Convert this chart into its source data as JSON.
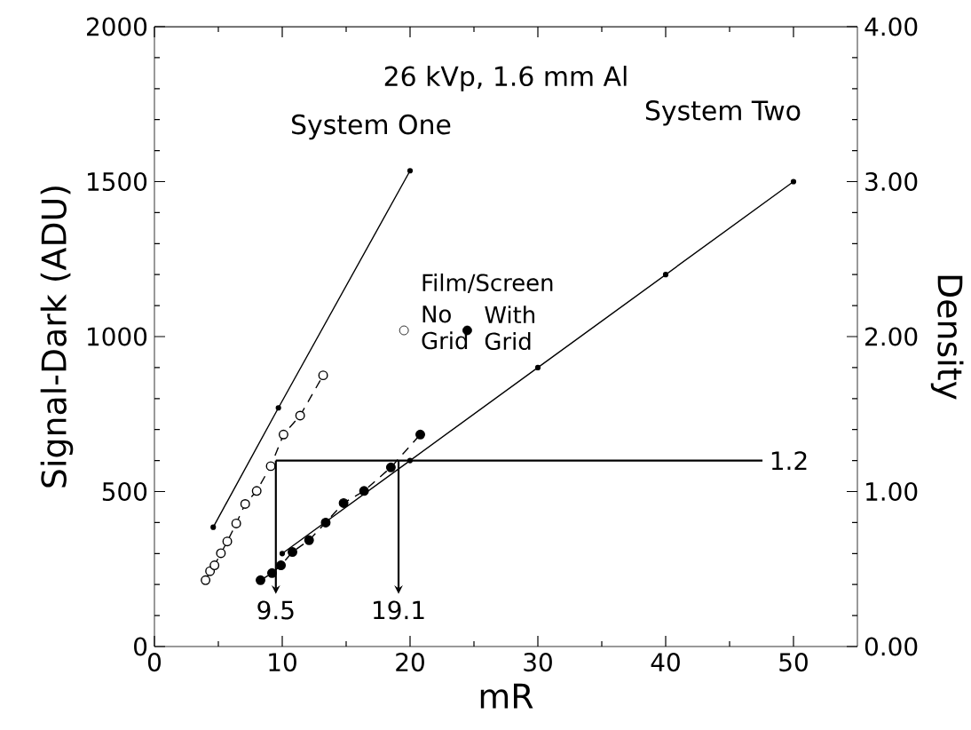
{
  "chart_data": {
    "type": "line",
    "title": "26 kVp, 1.6 mm Al",
    "xlabel": "mR",
    "ylabel": "Signal-Dark (ADU)",
    "y2label": "Density",
    "annotations": [
      "Film/Screen"
    ],
    "xlim": [
      0,
      55
    ],
    "xticks": [
      0,
      10,
      20,
      30,
      40,
      50
    ],
    "ylim": [
      0,
      2000
    ],
    "yticks": [
      0,
      500,
      1000,
      1500,
      2000
    ],
    "y2lim": [
      0,
      4
    ],
    "y2ticks": [
      {
        "value": 0,
        "label": "0.00"
      },
      {
        "value": 1,
        "label": "1.00"
      },
      {
        "value": 2,
        "label": "2.00"
      },
      {
        "value": 3,
        "label": "3.00"
      },
      {
        "value": 4,
        "label": "4.00"
      }
    ],
    "grid": false,
    "legend": "top",
    "ref_lines": [
      {
        "axis": "y2",
        "value": 1.2,
        "label": "1.2"
      },
      {
        "axis": "x",
        "value": 9.5,
        "label": "9.5"
      },
      {
        "axis": "x",
        "value": 19.1,
        "label": "19.1"
      }
    ],
    "series": [
      {
        "name": "System One",
        "color": "#000000",
        "marker": "circle",
        "line_style": "solid",
        "x": [
          4.6,
          9.7,
          20
        ],
        "values": [
          385,
          770,
          1535
        ]
      },
      {
        "name": "System Two",
        "color": "#000000",
        "marker": "circle",
        "line_style": "solid",
        "x": [
          10,
          20,
          30,
          40,
          50
        ],
        "values": [
          300,
          600,
          900,
          1200,
          1500
        ]
      },
      {
        "name": "No Grid",
        "color": "#000000",
        "marker": "circle",
        "line_style": "dashed",
        "x": [
          4.0,
          4.35,
          4.7,
          5.2,
          5.7,
          6.4,
          7.1,
          8.0,
          9.1,
          10.1,
          11.4,
          13.2
        ],
        "values": [
          214,
          243,
          262,
          301,
          339,
          397,
          460,
          502,
          582,
          684,
          745,
          875
        ]
      },
      {
        "name": "With Grid",
        "color": "#000000",
        "marker": "circle",
        "line_style": "dashed",
        "x": [
          8.3,
          9.2,
          9.9,
          10.8,
          12.1,
          13.4,
          14.8,
          16.4,
          18.5,
          20.8
        ],
        "values": [
          214,
          237,
          262,
          305,
          343,
          400,
          463,
          502,
          578,
          684
        ]
      }
    ]
  }
}
